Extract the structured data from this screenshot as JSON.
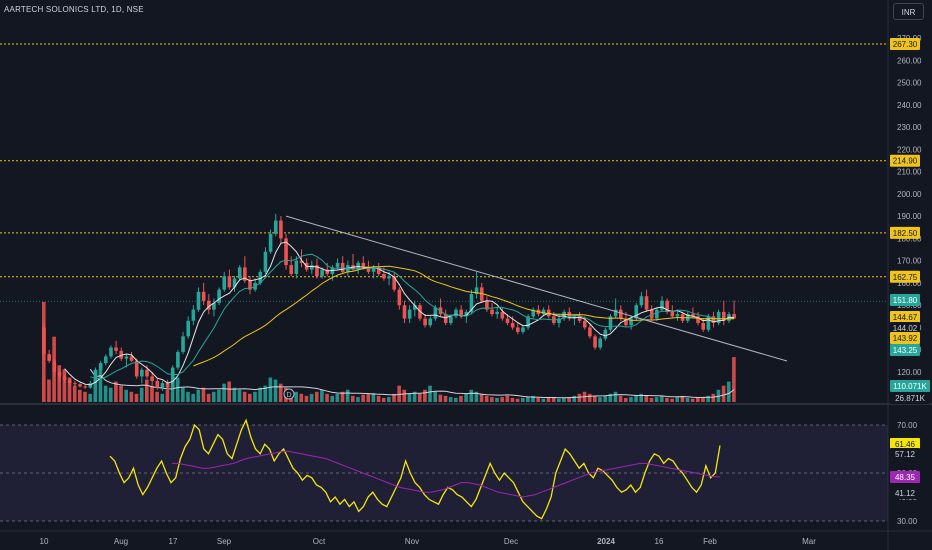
{
  "header": {
    "title": "AARTECH SOLONICS LTD, 1D, NSE",
    "currency_button": "INR"
  },
  "colors": {
    "background": "#131722",
    "up": "#26a69a",
    "down": "#ef5350",
    "ma_short": "#e8e8e8",
    "ma_mid": "#26a69a",
    "ma_long": "#f0c419",
    "trendline": "#b2b5be",
    "level_line": "#f0c419",
    "rsi_line": "#f5e60a",
    "rsi_ma": "#9c27b0",
    "rsi_band": "#7e57c2"
  },
  "chart_data": [
    {
      "type": "candlestick",
      "title": "AARTECH SOLONICS LTD, 1D, NSE",
      "ylim": [
        110,
        275
      ],
      "yticks": [
        120,
        130,
        140,
        150,
        160,
        170,
        180,
        190,
        200,
        210,
        220,
        230,
        240,
        250,
        260,
        270
      ],
      "x_labels": [
        "10",
        "Aug",
        "17",
        "Sep",
        "Oct",
        "Nov",
        "Dec",
        "2024",
        "16",
        "Feb",
        "Mar"
      ],
      "candles": [
        [
          140.0,
          142.0,
          125.0,
          128.0
        ],
        [
          128.0,
          130.0,
          124.0,
          125.0
        ],
        [
          125.0,
          126.0,
          118.0,
          120.0
        ],
        [
          120.0,
          121.0,
          116.0,
          118.0
        ],
        [
          118.0,
          119.0,
          115.0,
          116.5
        ],
        [
          116.5,
          117.0,
          114.0,
          115.0
        ],
        [
          115.0,
          116.0,
          113.5,
          114.5
        ],
        [
          114.5,
          115.0,
          113.0,
          113.5
        ],
        [
          113.5,
          114.5,
          112.5,
          113.0
        ],
        [
          113.0,
          116.0,
          112.5,
          115.0
        ],
        [
          115.0,
          122.0,
          114.5,
          121.0
        ],
        [
          121.0,
          125.0,
          119.5,
          124.0
        ],
        [
          124.0,
          128.0,
          123.0,
          127.0
        ],
        [
          127.0,
          132.0,
          126.0,
          131.0
        ],
        [
          131.0,
          134.0,
          128.0,
          129.5
        ],
        [
          129.5,
          131.0,
          125.0,
          126.0
        ],
        [
          126.0,
          128.0,
          122.0,
          127.0
        ],
        [
          127.0,
          129.0,
          124.5,
          125.0
        ],
        [
          125.0,
          126.0,
          117.0,
          118.0
        ],
        [
          118.0,
          122.0,
          115.0,
          121.0
        ],
        [
          121.0,
          123.0,
          117.0,
          118.0
        ],
        [
          118.0,
          120.0,
          114.0,
          116.0
        ],
        [
          116.0,
          117.0,
          112.0,
          113.0
        ],
        [
          113.0,
          116.0,
          111.5,
          115.0
        ],
        [
          115.0,
          116.5,
          112.0,
          113.0
        ],
        [
          113.0,
          123.0,
          112.5,
          122.0
        ],
        [
          122.0,
          130.0,
          121.0,
          129.0
        ],
        [
          129.0,
          138.0,
          128.0,
          136.0
        ],
        [
          136.0,
          145.0,
          135.0,
          143.0
        ],
        [
          143.0,
          150.0,
          141.0,
          148.0
        ],
        [
          148.0,
          158.0,
          147.0,
          156.0
        ],
        [
          156.0,
          160.0,
          150.0,
          152.0
        ],
        [
          152.0,
          155.0,
          146.0,
          148.0
        ],
        [
          148.0,
          153.0,
          145.0,
          151.0
        ],
        [
          151.0,
          158.0,
          150.0,
          157.0
        ],
        [
          157.0,
          165.0,
          156.0,
          163.0
        ],
        [
          163.0,
          166.0,
          157.0,
          158.0
        ],
        [
          158.0,
          163.0,
          156.0,
          162.0
        ],
        [
          162.0,
          168.0,
          161.0,
          167.0
        ],
        [
          167.0,
          172.0,
          160.0,
          161.0
        ],
        [
          161.0,
          163.0,
          155.0,
          157.0
        ],
        [
          157.0,
          162.0,
          156.0,
          160.0
        ],
        [
          160.0,
          166.0,
          159.0,
          165.0
        ],
        [
          165.0,
          176.0,
          164.0,
          174.0
        ],
        [
          174.0,
          184.0,
          173.0,
          182.0
        ],
        [
          182.0,
          191.0,
          181.0,
          188.0
        ],
        [
          188.0,
          190.0,
          178.0,
          180.0
        ],
        [
          180.0,
          182.0,
          166.0,
          168.0
        ],
        [
          168.0,
          172.0,
          163.0,
          164.0
        ],
        [
          164.0,
          172.0,
          162.0,
          170.0
        ],
        [
          170.0,
          175.0,
          167.0,
          169.0
        ],
        [
          169.0,
          171.0,
          165.0,
          166.0
        ],
        [
          166.0,
          170.0,
          164.0,
          168.0
        ],
        [
          168.0,
          171.0,
          162.0,
          163.0
        ],
        [
          163.0,
          167.0,
          162.0,
          166.0
        ],
        [
          166.0,
          169.0,
          163.0,
          164.0
        ],
        [
          164.0,
          168.0,
          161.0,
          167.0
        ],
        [
          167.0,
          171.0,
          166.0,
          169.0
        ],
        [
          169.0,
          172.0,
          164.0,
          165.0
        ],
        [
          165.0,
          170.0,
          163.0,
          168.0
        ],
        [
          168.0,
          173.0,
          165.0,
          166.0
        ],
        [
          166.0,
          170.0,
          164.0,
          169.0
        ],
        [
          169.0,
          172.0,
          166.0,
          167.0
        ],
        [
          167.0,
          170.0,
          164.0,
          165.0
        ],
        [
          165.0,
          168.0,
          162.0,
          167.0
        ],
        [
          167.0,
          169.0,
          163.0,
          164.0
        ],
        [
          164.0,
          167.0,
          161.0,
          162.0
        ],
        [
          162.0,
          165.0,
          159.0,
          163.0
        ],
        [
          163.0,
          165.0,
          156.0,
          157.0
        ],
        [
          157.0,
          158.0,
          148.0,
          150.0
        ],
        [
          150.0,
          152.0,
          142.0,
          144.0
        ],
        [
          144.0,
          150.0,
          142.0,
          148.0
        ],
        [
          148.0,
          152.0,
          145.0,
          150.0
        ],
        [
          150.0,
          151.0,
          143.0,
          144.0
        ],
        [
          144.0,
          146.0,
          140.0,
          141.0
        ],
        [
          141.0,
          145.0,
          140.0,
          144.0
        ],
        [
          144.0,
          150.0,
          143.0,
          149.0
        ],
        [
          149.0,
          153.0,
          145.0,
          146.0
        ],
        [
          146.0,
          148.0,
          141.0,
          142.0
        ],
        [
          142.0,
          146.0,
          141.0,
          145.0
        ],
        [
          145.0,
          149.0,
          144.0,
          148.0
        ],
        [
          148.0,
          150.0,
          144.0,
          145.0
        ],
        [
          145.0,
          148.0,
          142.0,
          147.0
        ],
        [
          147.0,
          157.0,
          146.0,
          155.0
        ],
        [
          155.0,
          165.0,
          153.0,
          158.0
        ],
        [
          158.0,
          160.0,
          151.0,
          152.0
        ],
        [
          152.0,
          154.0,
          147.0,
          148.0
        ],
        [
          148.0,
          151.0,
          145.0,
          146.0
        ],
        [
          146.0,
          149.0,
          144.0,
          147.0
        ],
        [
          147.0,
          149.0,
          143.0,
          144.0
        ],
        [
          144.0,
          146.0,
          141.0,
          142.0
        ],
        [
          142.0,
          145.0,
          139.0,
          140.0
        ],
        [
          140.0,
          142.0,
          137.0,
          138.0
        ],
        [
          138.0,
          141.0,
          137.0,
          140.0
        ],
        [
          140.0,
          146.0,
          139.0,
          145.0
        ],
        [
          145.0,
          149.0,
          144.0,
          148.0
        ],
        [
          148.0,
          150.0,
          145.0,
          146.0
        ],
        [
          146.0,
          149.0,
          145.0,
          148.0
        ],
        [
          148.0,
          150.0,
          144.0,
          145.0
        ],
        [
          145.0,
          147.0,
          141.0,
          142.0
        ],
        [
          142.0,
          146.0,
          140.0,
          144.0
        ],
        [
          144.0,
          148.0,
          143.0,
          147.0
        ],
        [
          147.0,
          149.0,
          143.0,
          144.0
        ],
        [
          144.0,
          146.0,
          141.0,
          145.0
        ],
        [
          145.0,
          147.0,
          142.0,
          143.0
        ],
        [
          143.0,
          145.0,
          139.0,
          140.0
        ],
        [
          140.0,
          142.0,
          135.0,
          136.0
        ],
        [
          136.0,
          137.0,
          130.0,
          131.0
        ],
        [
          131.0,
          136.0,
          130.0,
          135.0
        ],
        [
          135.0,
          140.0,
          134.0,
          139.0
        ],
        [
          139.0,
          146.0,
          138.0,
          145.0
        ],
        [
          145.0,
          153.0,
          144.0,
          148.0
        ],
        [
          148.0,
          150.0,
          143.0,
          144.0
        ],
        [
          144.0,
          147.0,
          140.0,
          141.0
        ],
        [
          141.0,
          145.0,
          139.0,
          144.0
        ],
        [
          144.0,
          151.0,
          143.0,
          150.0
        ],
        [
          150.0,
          156.0,
          149.0,
          154.0
        ],
        [
          154.0,
          157.0,
          147.0,
          148.0
        ],
        [
          148.0,
          150.0,
          143.0,
          144.0
        ],
        [
          144.0,
          149.0,
          143.0,
          148.0
        ],
        [
          148.0,
          154.0,
          147.0,
          152.0
        ],
        [
          152.0,
          153.0,
          146.0,
          147.0
        ],
        [
          147.0,
          150.0,
          144.0,
          145.0
        ],
        [
          145.0,
          148.0,
          143.0,
          146.0
        ],
        [
          146.0,
          147.0,
          142.0,
          143.0
        ],
        [
          143.0,
          147.0,
          142.0,
          146.0
        ],
        [
          146.0,
          149.0,
          144.0,
          145.0
        ],
        [
          145.0,
          147.0,
          141.0,
          142.0
        ],
        [
          142.0,
          144.0,
          138.0,
          139.0
        ],
        [
          139.0,
          146.0,
          138.0,
          145.0
        ],
        [
          145.0,
          147.0,
          140.0,
          142.0
        ],
        [
          142.0,
          148.0,
          141.0,
          147.0
        ],
        [
          147.0,
          152.0,
          141.0,
          143.0
        ],
        [
          143.0,
          147.0,
          142.0,
          146.0
        ],
        [
          146.0,
          152.0,
          145.0,
          144.0
        ]
      ],
      "volumes": [
        245,
        55,
        160,
        90,
        80,
        60,
        40,
        30,
        25,
        20,
        60,
        80,
        40,
        35,
        50,
        40,
        30,
        25,
        20,
        35,
        55,
        40,
        25,
        20,
        30,
        45,
        60,
        35,
        25,
        20,
        30,
        35,
        20,
        25,
        30,
        45,
        50,
        35,
        30,
        25,
        20,
        25,
        35,
        40,
        60,
        55,
        45,
        35,
        30,
        25,
        20,
        15,
        20,
        25,
        30,
        20,
        15,
        20,
        25,
        30,
        15,
        12,
        18,
        20,
        22,
        15,
        10,
        12,
        20,
        40,
        30,
        20,
        25,
        20,
        30,
        40,
        25,
        18,
        15,
        12,
        10,
        15,
        20,
        30,
        25,
        20,
        15,
        12,
        10,
        12,
        15,
        10,
        8,
        10,
        12,
        15,
        10,
        8,
        10,
        12,
        8,
        10,
        12,
        15,
        20,
        25,
        20,
        15,
        12,
        15,
        20,
        25,
        15,
        10,
        12,
        15,
        20,
        15,
        10,
        12,
        15,
        10,
        8,
        12,
        15,
        10,
        8,
        10,
        12,
        15,
        20,
        30,
        40,
        50,
        110
      ],
      "levels": [
        "267.30",
        "214.90",
        "182.50",
        "162.75"
      ],
      "price_badges": [
        "151.80",
        "144.67",
        "144.02",
        "143.92",
        "143.25"
      ],
      "volume_badges": [
        "110.071K",
        "26.871K"
      ],
      "trendline": {
        "start_index": 47,
        "start_price": 190.0,
        "end_index": 175,
        "end_price": 124.0
      }
    },
    {
      "type": "line",
      "title": "RSI",
      "ylim": [
        30,
        76
      ],
      "yticks": [
        30,
        40,
        50,
        60,
        70
      ],
      "band": [
        30,
        70
      ],
      "rsi_values": [
        57,
        55,
        50,
        46,
        48,
        52,
        45,
        41,
        44,
        48,
        52,
        55,
        50,
        46,
        48,
        56,
        61,
        64,
        70,
        68,
        60,
        58,
        62,
        66,
        64,
        58,
        56,
        62,
        68,
        72,
        65,
        60,
        58,
        62,
        60,
        55,
        58,
        60,
        56,
        52,
        50,
        47,
        49,
        48,
        45,
        44,
        42,
        38,
        40,
        37,
        39,
        36,
        38,
        34,
        36,
        40,
        42,
        39,
        37,
        36,
        40,
        44,
        48,
        55,
        50,
        46,
        44,
        41,
        39,
        38,
        37,
        41,
        44,
        43,
        41,
        40,
        38,
        36,
        39,
        44,
        49,
        54,
        50,
        47,
        50,
        48,
        46,
        42,
        38,
        36,
        34,
        32,
        31,
        35,
        40,
        50,
        55,
        60,
        58,
        55,
        52,
        54,
        50,
        48,
        52,
        51,
        49,
        47,
        44,
        42,
        43,
        45,
        42,
        44,
        50,
        55,
        58,
        57,
        54,
        56,
        55,
        52,
        50,
        47,
        44,
        42,
        45,
        53,
        48,
        50,
        61.46
      ],
      "rsi_ma_values": [
        54,
        54,
        53.5,
        53,
        52.5,
        52,
        52,
        52.5,
        53,
        53.5,
        54,
        55,
        56,
        56.5,
        57,
        57.5,
        58,
        58.5,
        59,
        59,
        58.5,
        58,
        57.5,
        57,
        56.5,
        56,
        55,
        54,
        53,
        52,
        51,
        50,
        49,
        48,
        47,
        46,
        45,
        44,
        43.5,
        43,
        42.5,
        42,
        42,
        42.5,
        43,
        44,
        45,
        46,
        46,
        45.5,
        45,
        44,
        43,
        42,
        41.5,
        41,
        40.5,
        40,
        40.5,
        41,
        42,
        43,
        44,
        45,
        46,
        47,
        48,
        49,
        50,
        50.5,
        51,
        51.5,
        52,
        52.5,
        53,
        53.5,
        54,
        54,
        53.5,
        53,
        52.5,
        52,
        51.5,
        51,
        50.5,
        50,
        49.5,
        49,
        48.5,
        48.35
      ],
      "badges": [
        "61.46",
        "57.12",
        "48.35",
        "41.12"
      ]
    }
  ]
}
